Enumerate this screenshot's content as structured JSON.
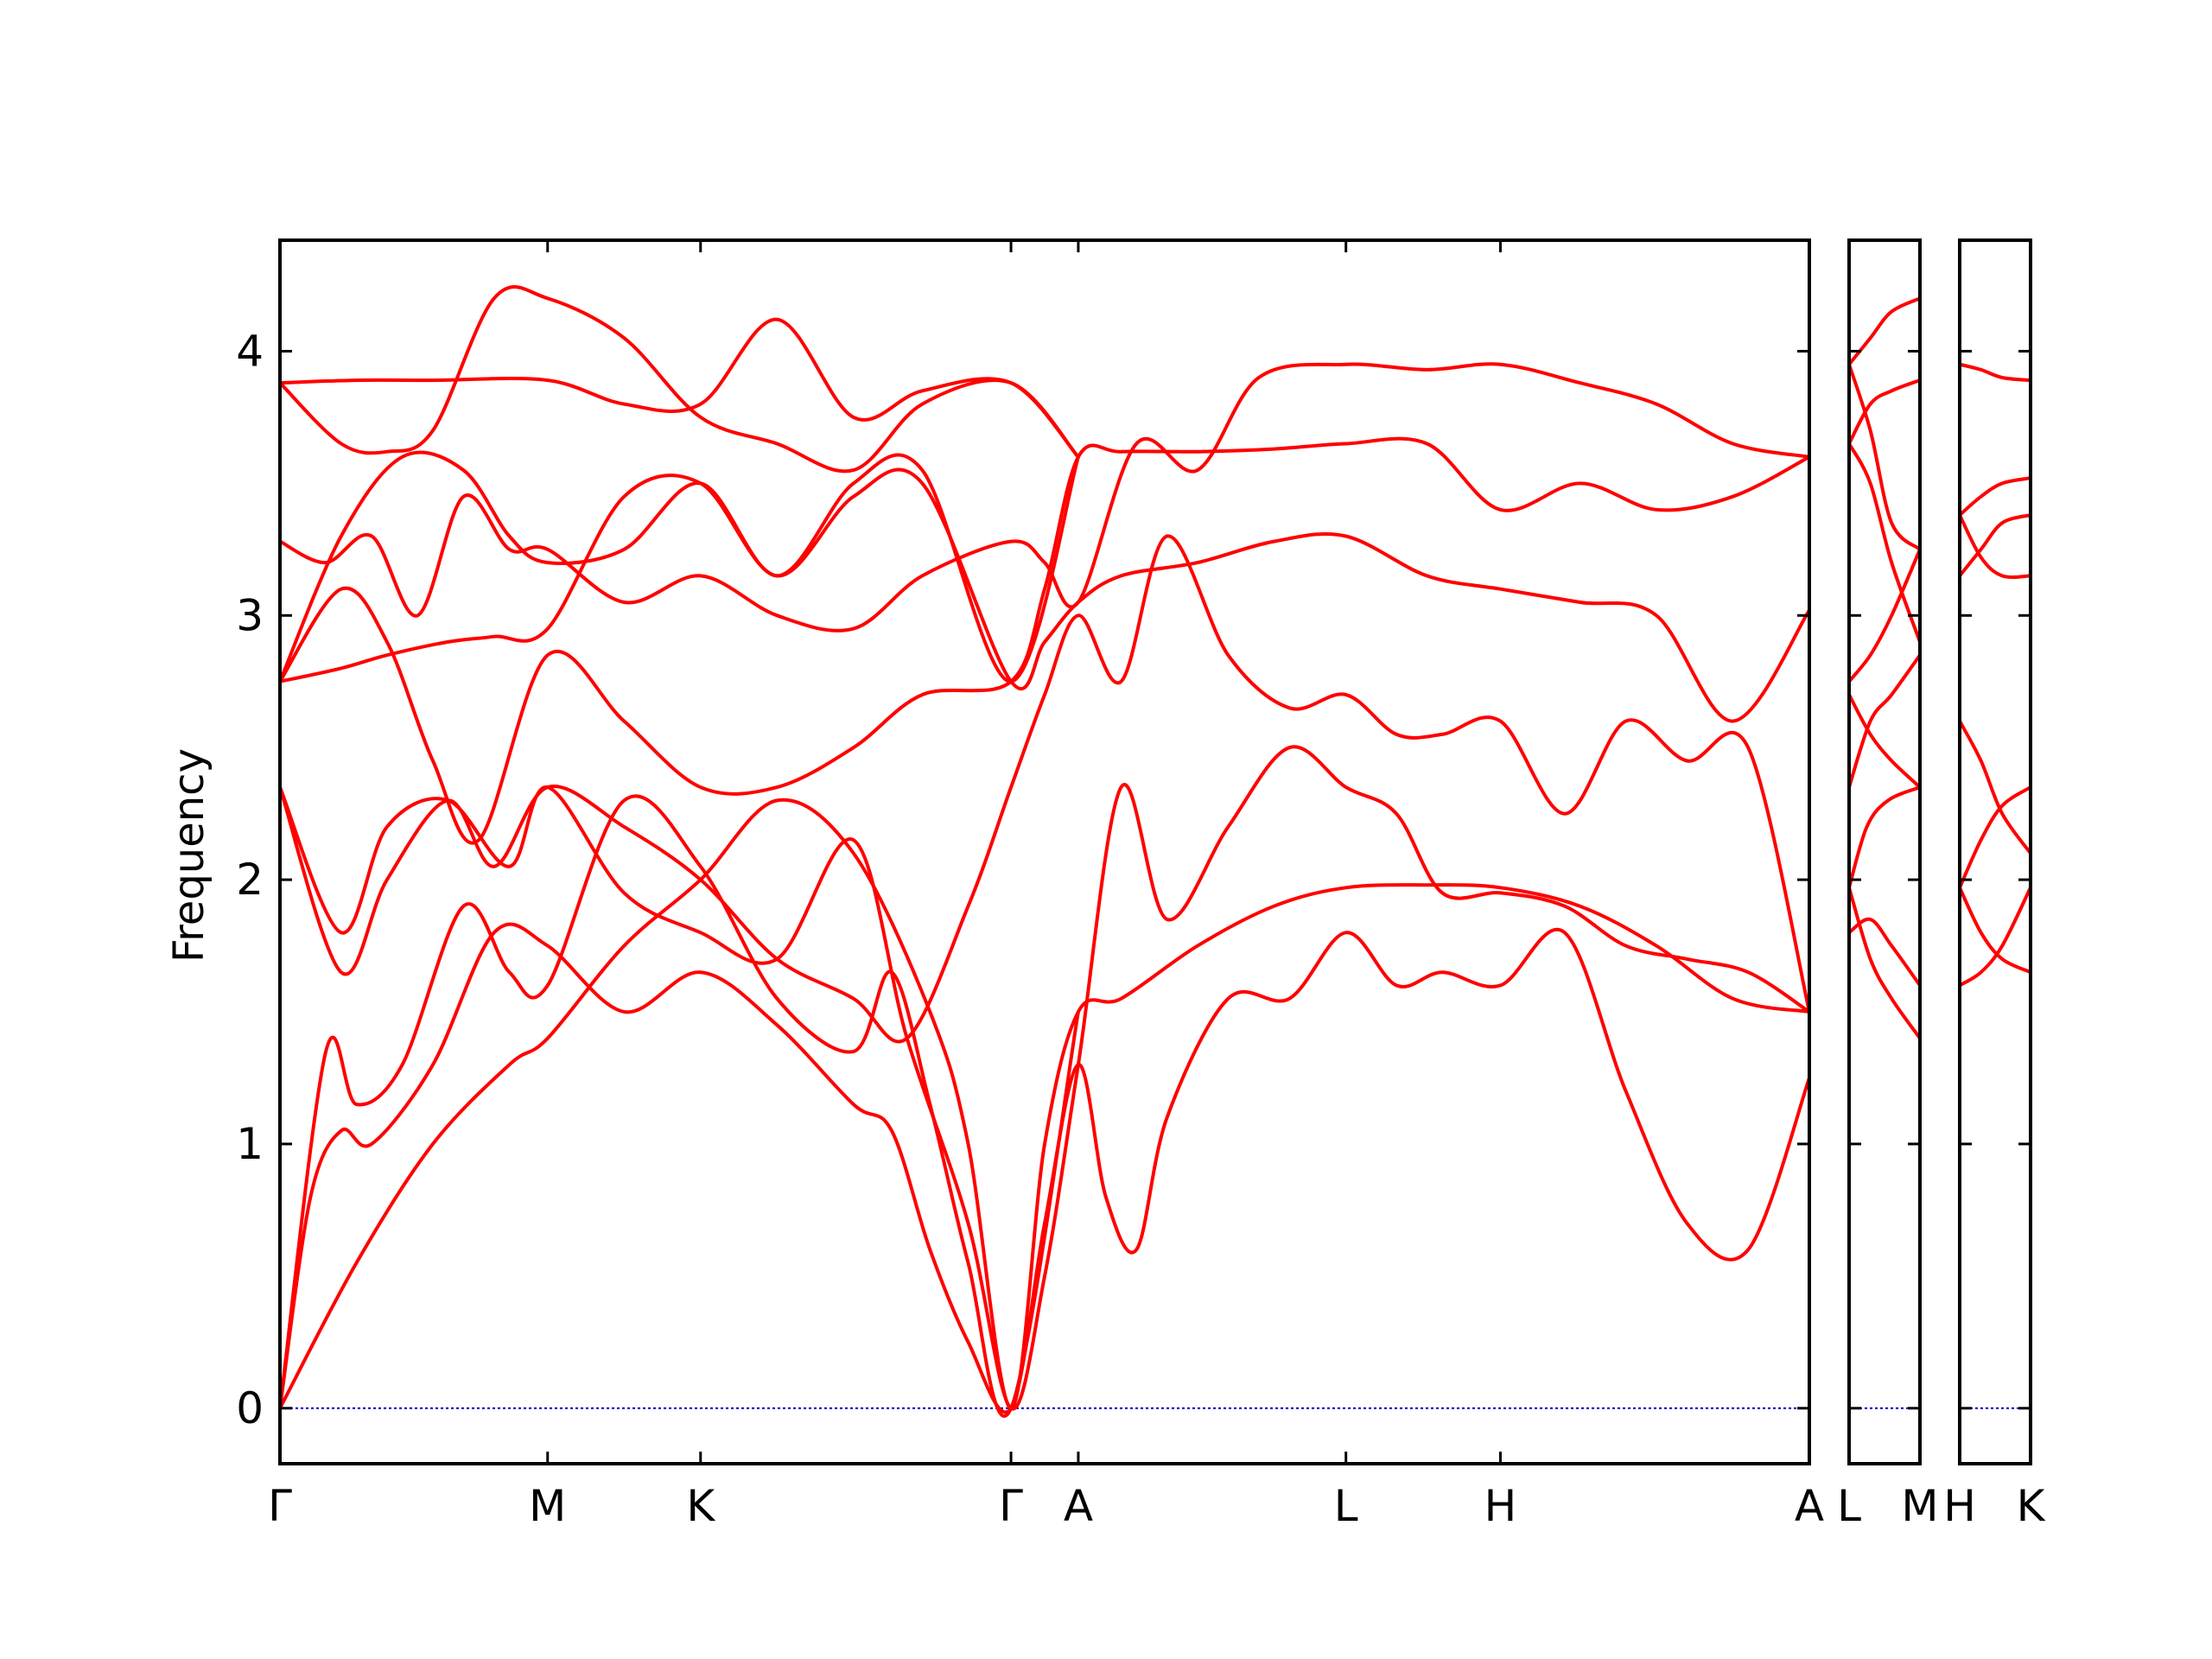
{
  "chart_data": {
    "type": "line",
    "title": "",
    "ylabel": "Frequency",
    "xlabel": "",
    "ylim": [
      -0.21,
      4.42
    ],
    "yticks": [
      "0",
      "1",
      "2",
      "3",
      "4"
    ],
    "panels": [
      {
        "xlim": [
          0,
          10
        ],
        "ticks": [
          {
            "x": 0,
            "label": "Γ"
          },
          {
            "x": 1.75,
            "label": "M"
          },
          {
            "x": 2.75,
            "label": "K"
          },
          {
            "x": 4.78,
            "label": "Γ"
          },
          {
            "x": 5.22,
            "label": "A"
          },
          {
            "x": 6.97,
            "label": "L"
          },
          {
            "x": 7.98,
            "label": "H"
          },
          {
            "x": 10,
            "label": "A"
          }
        ],
        "series": [
          {
            "x": [
              0,
              0.5,
              1,
              1.5,
              1.75,
              2.25,
              2.75,
              3.25,
              3.75,
              4.25,
              4.5,
              4.78,
              5.0,
              5.22,
              5.5,
              6,
              6.5,
              6.97,
              7.5,
              7.98,
              8.5,
              9,
              9.5,
              10
            ],
            "values": [
              0,
              0.55,
              1.0,
              1.3,
              1.4,
              1.75,
              2.0,
              2.3,
              2.1,
              1.5,
              1.0,
              0,
              1.0,
              1.5,
              1.55,
              1.75,
              1.9,
              1.97,
              1.98,
              1.97,
              1.9,
              1.75,
              1.55,
              1.5
            ]
          },
          {
            "x": [
              0,
              0.2,
              0.4,
              0.6,
              1,
              1.4,
              1.75,
              2.25,
              2.75,
              3.25,
              3.75,
              4.0,
              4.25,
              4.5,
              4.78,
              5.0,
              5.22,
              5.4,
              5.6,
              5.8,
              6.2,
              6.6,
              6.97,
              7.3,
              7.6,
              7.98,
              8.4,
              8.8,
              9.2,
              9.6,
              10
            ],
            "values": [
              0,
              0.8,
              1.05,
              1.0,
              1.3,
              1.8,
              1.75,
              1.5,
              1.65,
              1.45,
              1.15,
              1.05,
              0.6,
              0.25,
              0,
              0.7,
              1.3,
              0.8,
              0.6,
              1.1,
              1.55,
              1.55,
              1.8,
              1.6,
              1.65,
              1.6,
              1.8,
              1.2,
              0.7,
              0.6,
              1.25
            ]
          },
          {
            "x": [
              0,
              0.3,
              0.5,
              0.8,
              1.2,
              1.5,
              1.75,
              2.25,
              2.75,
              3.25,
              3.75,
              4.0,
              4.25,
              4.5,
              4.78,
              5.22
            ],
            "values": [
              0,
              1.35,
              1.15,
              1.3,
              1.9,
              1.65,
              1.6,
              2.3,
              2.05,
              1.55,
              1.35,
              1.65,
              1.15,
              0.55,
              0,
              1.5
            ]
          },
          {
            "x": [
              0,
              0.4,
              0.7,
              1.1,
              1.5,
              1.75,
              2.25,
              2.75,
              3.25,
              3.75,
              4.1,
              4.5,
              4.78,
              5.0,
              5.22,
              5.5,
              5.8,
              6.2,
              6.6,
              6.97,
              7.3,
              7.6,
              7.98,
              8.4,
              8.8,
              9.2,
              9.6,
              10
            ],
            "values": [
              2.35,
              1.8,
              2.2,
              2.3,
              2.05,
              2.35,
              1.95,
              1.8,
              1.7,
              2.15,
              1.4,
              0.7,
              0,
              0.5,
              1.3,
              2.35,
              1.85,
              2.2,
              2.5,
              2.35,
              2.25,
              1.95,
              1.95,
              1.9,
              1.75,
              1.7,
              1.65,
              1.5
            ]
          },
          {
            "x": [
              0,
              0.4,
              0.7,
              1.1,
              1.4,
              1.75,
              2.25,
              2.75,
              3.25,
              3.75,
              4.1,
              4.5,
              4.78,
              5.0,
              5.22,
              5.5,
              5.8,
              6.2,
              6.6,
              6.97,
              7.3,
              7.6,
              7.98,
              8.4,
              8.8,
              9.2,
              9.6,
              10
            ],
            "values": [
              2.35,
              1.65,
              2.0,
              2.3,
              2.05,
              2.35,
              2.2,
              2.0,
              1.7,
              1.55,
              1.4,
              1.9,
              2.35,
              2.7,
              3.0,
              2.75,
              3.3,
              2.85,
              2.65,
              2.7,
              2.55,
              2.55,
              2.6,
              2.25,
              2.6,
              2.45,
              2.5,
              1.5
            ]
          },
          {
            "x": [
              0,
              0.4,
              0.7,
              1.1,
              1.4,
              1.75,
              2.25,
              2.75,
              3.25,
              3.75,
              4.2,
              4.78,
              5.0,
              5.22,
              5.5,
              6,
              6.5,
              6.97,
              7.5,
              7.98,
              8.5,
              9,
              9.5,
              10
            ],
            "values": [
              2.75,
              2.8,
              2.85,
              2.9,
              2.92,
              2.95,
              3.45,
              3.5,
              3.15,
              3.45,
              3.5,
              2.75,
              2.9,
              3.05,
              3.15,
              3.2,
              3.28,
              3.3,
              3.15,
              3.1,
              3.05,
              3.0,
              2.6,
              3.02
            ]
          },
          {
            "x": [
              0,
              0.4,
              0.7,
              1.0,
              1.3,
              1.75,
              2.25,
              2.75,
              3.25,
              3.75,
              4.2,
              4.78,
              5.0,
              5.22,
              5.5,
              6,
              6.5,
              6.97,
              7.5,
              7.98,
              8.5,
              9,
              9.5,
              10
            ],
            "values": [
              2.75,
              3.1,
              2.9,
              2.45,
              2.15,
              2.85,
              2.6,
              2.35,
              2.35,
              2.5,
              2.7,
              2.75,
              3.1,
              3.6,
              3.62,
              3.62,
              3.63,
              3.65,
              3.65,
              3.4,
              3.5,
              3.4,
              3.45,
              3.6
            ]
          },
          {
            "x": [
              0,
              0.3,
              0.6,
              0.9,
              1.2,
              1.5,
              1.75,
              2.25,
              2.75,
              3.25,
              3.75,
              4.2,
              4.78,
              5.0,
              5.22,
              5.6,
              6,
              6.4,
              6.97,
              7.5,
              7.98,
              8.5,
              9,
              9.5,
              10
            ],
            "values": [
              3.28,
              3.2,
              3.3,
              3.0,
              3.45,
              3.25,
              3.25,
              3.05,
              3.15,
              3.0,
              2.95,
              3.15,
              3.28,
              3.2,
              3.05,
              3.65,
              3.55,
              3.9,
              3.95,
              3.93,
              3.95,
              3.88,
              3.8,
              3.65,
              3.6
            ]
          },
          {
            "x": [
              0,
              0.4,
              0.8,
              1.2,
              1.5,
              1.75,
              2.25,
              2.75,
              3.25,
              3.75,
              4.2,
              4.78,
              5.22
            ],
            "values": [
              2.75,
              3.3,
              3.6,
              3.55,
              3.3,
              3.2,
              3.25,
              3.5,
              3.15,
              3.5,
              3.55,
              2.75,
              3.6
            ]
          },
          {
            "x": [
              0,
              0.4,
              0.7,
              1.0,
              1.4,
              1.75,
              2.25,
              2.75,
              3.25,
              3.75,
              4.2,
              4.78,
              5.22
            ],
            "values": [
              3.88,
              3.65,
              3.62,
              3.7,
              4.2,
              4.2,
              4.05,
              3.75,
              3.65,
              3.55,
              3.8,
              3.88,
              3.6
            ]
          },
          {
            "x": [
              0,
              0.5,
              1,
              1.75,
              2.25,
              2.75,
              3.25,
              3.75,
              4.2,
              4.78,
              5.22
            ],
            "values": [
              3.88,
              3.89,
              3.89,
              3.89,
              3.8,
              3.8,
              4.12,
              3.75,
              3.85,
              3.88,
              3.6
            ]
          }
        ]
      },
      {
        "xlim": [
          0,
          1
        ],
        "ticks": [
          {
            "x": 0,
            "label": "L"
          },
          {
            "x": 1,
            "label": "M"
          }
        ],
        "series": [
          {
            "x": [
              0,
              0.3,
              0.6,
              1
            ],
            "values": [
              1.97,
              1.7,
              1.55,
              1.4
            ]
          },
          {
            "x": [
              0,
              0.3,
              0.6,
              1
            ],
            "values": [
              1.8,
              1.85,
              1.75,
              1.6
            ]
          },
          {
            "x": [
              0,
              0.25,
              0.55,
              1
            ],
            "values": [
              1.97,
              2.2,
              2.3,
              2.35
            ]
          },
          {
            "x": [
              0,
              0.3,
              0.6,
              1
            ],
            "values": [
              2.35,
              2.6,
              2.7,
              2.85
            ]
          },
          {
            "x": [
              0,
              0.3,
              0.6,
              1
            ],
            "values": [
              2.7,
              2.55,
              2.45,
              2.35
            ]
          },
          {
            "x": [
              0,
              0.3,
              0.6,
              1
            ],
            "values": [
              2.75,
              2.85,
              3.0,
              3.25
            ]
          },
          {
            "x": [
              0,
              0.3,
              0.6,
              1
            ],
            "values": [
              3.65,
              3.5,
              3.2,
              2.9
            ]
          },
          {
            "x": [
              0,
              0.3,
              0.6,
              1
            ],
            "values": [
              3.95,
              3.7,
              3.35,
              3.25
            ]
          },
          {
            "x": [
              0,
              0.3,
              0.6,
              1
            ],
            "values": [
              3.65,
              3.8,
              3.85,
              3.89
            ]
          },
          {
            "x": [
              0,
              0.3,
              0.6,
              1
            ],
            "values": [
              3.95,
              4.05,
              4.15,
              4.2
            ]
          }
        ]
      },
      {
        "xlim": [
          0,
          1
        ],
        "ticks": [
          {
            "x": 0,
            "label": "H"
          },
          {
            "x": 1,
            "label": "K"
          }
        ],
        "series": [
          {
            "x": [
              0,
              0.3,
              0.6,
              1
            ],
            "values": [
              1.6,
              1.65,
              1.75,
              1.97
            ]
          },
          {
            "x": [
              0,
              0.3,
              0.6,
              1
            ],
            "values": [
              1.97,
              1.8,
              1.7,
              1.65
            ]
          },
          {
            "x": [
              0,
              0.3,
              0.6,
              1
            ],
            "values": [
              1.97,
              2.15,
              2.28,
              2.35
            ]
          },
          {
            "x": [
              0,
              0.3,
              0.6,
              1
            ],
            "values": [
              2.6,
              2.45,
              2.25,
              2.1
            ]
          },
          {
            "x": [
              0,
              0.3,
              0.6,
              1
            ],
            "values": [
              3.15,
              3.25,
              3.35,
              3.38
            ]
          },
          {
            "x": [
              0,
              0.3,
              0.6,
              1
            ],
            "values": [
              3.38,
              3.22,
              3.15,
              3.15
            ]
          },
          {
            "x": [
              0,
              0.3,
              0.6,
              1
            ],
            "values": [
              3.38,
              3.45,
              3.5,
              3.52
            ]
          },
          {
            "x": [
              0,
              0.3,
              0.6,
              1
            ],
            "values": [
              3.95,
              3.93,
              3.9,
              3.89
            ]
          }
        ]
      }
    ]
  }
}
